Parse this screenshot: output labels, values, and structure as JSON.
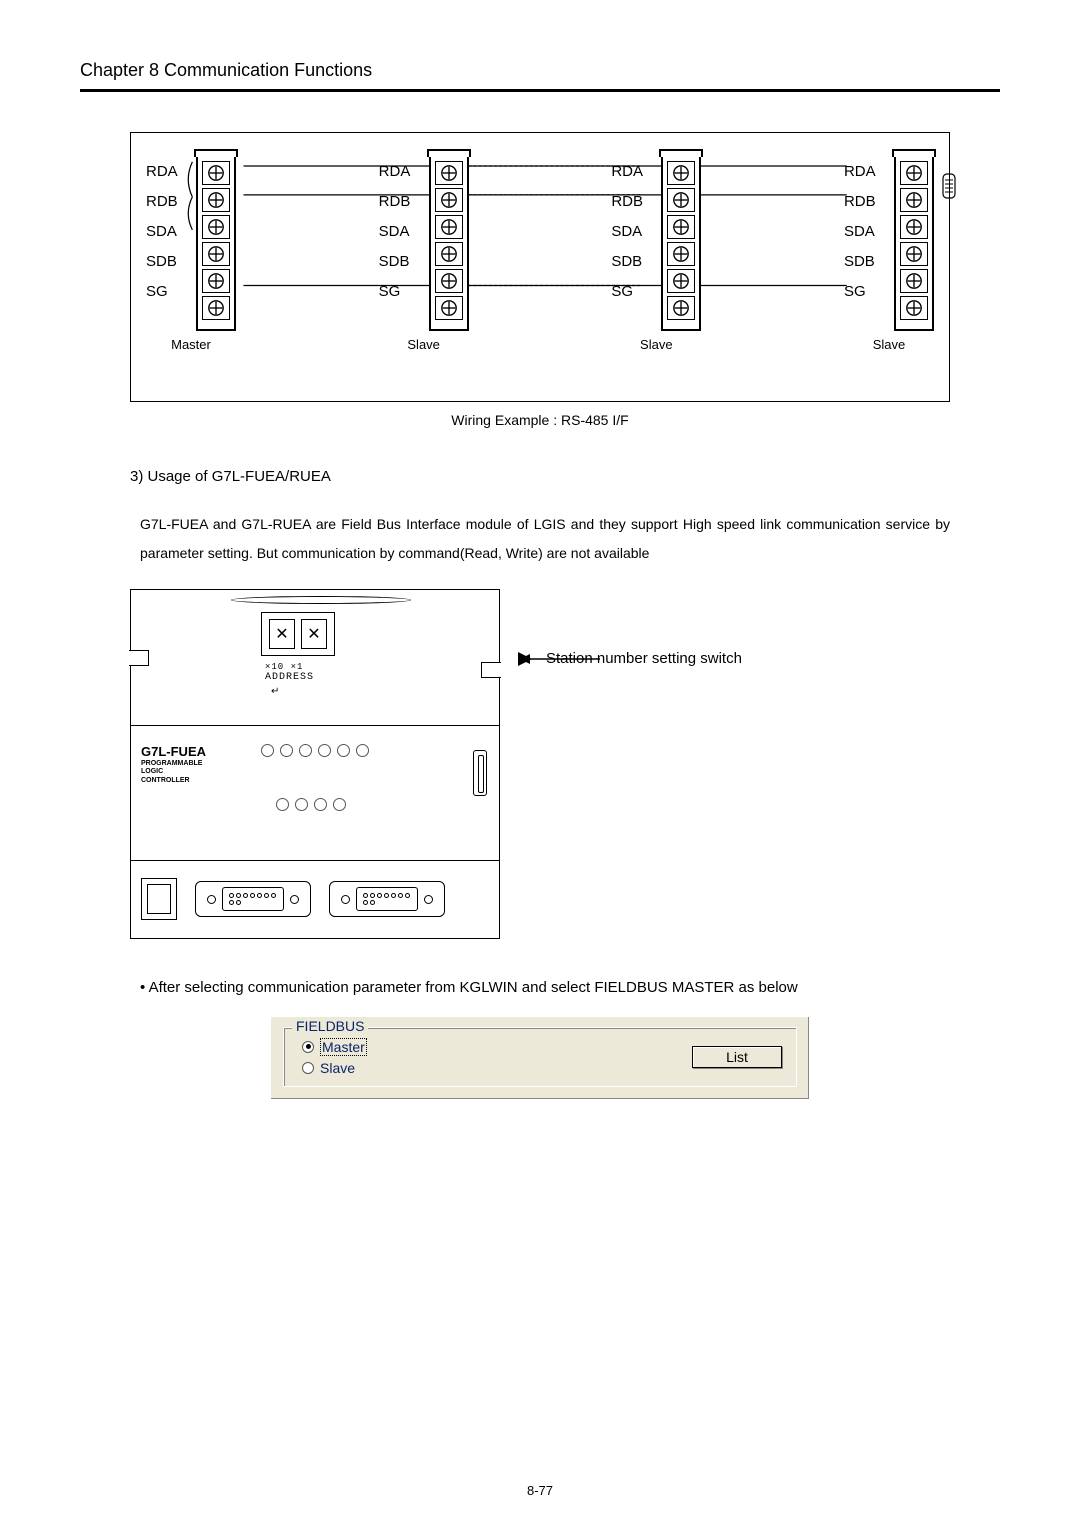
{
  "chapter": {
    "title": "Chapter 8   Communication Functions"
  },
  "wiring": {
    "signals": [
      "RDA",
      "RDB",
      "SDA",
      "SDB",
      "SG"
    ],
    "blocks": [
      {
        "caption": "Master"
      },
      {
        "caption": "Slave"
      },
      {
        "caption": "Slave"
      },
      {
        "caption": "Slave"
      }
    ],
    "caption": "Wiring Example : RS-485 I/F"
  },
  "section": {
    "title": "3) Usage of G7L-FUEA/RUEA",
    "body": "G7L-FUEA and G7L-RUEA are Field Bus Interface module of LGIS and they support High speed link communication service by parameter setting. But communication by command(Read, Write) are not available"
  },
  "module": {
    "brand": "G7L-FUEA",
    "brand_sub1": "PROGRAMMABLE",
    "brand_sub2": "LOGIC",
    "brand_sub3": "CONTROLLER",
    "addr": "ADDRESS",
    "addr_prefix": "×10  ×1",
    "arrow_label": "Station number setting switch",
    "rotary_glyph": "✕"
  },
  "bullet": "• After selecting communication parameter from KGLWIN and select FIELDBUS MASTER as below",
  "fieldbus": {
    "group_title": "FIELDBUS",
    "master": "Master",
    "slave": "Slave",
    "button": "List"
  },
  "page_number": "8-77"
}
